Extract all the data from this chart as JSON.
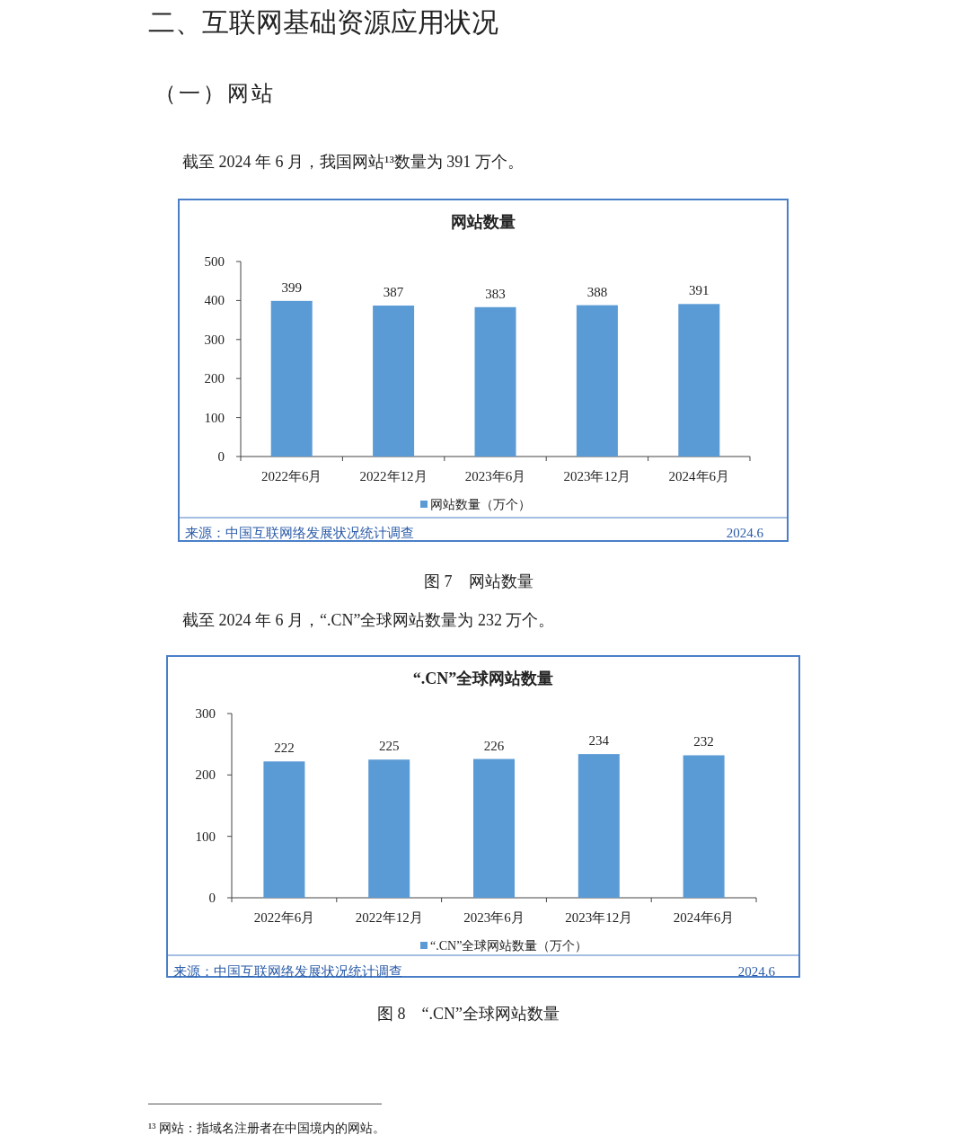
{
  "chart_data": [
    {
      "type": "bar",
      "title": "网站数量",
      "categories": [
        "2022年6月",
        "2022年12月",
        "2023年6月",
        "2023年12月",
        "2024年6月"
      ],
      "series": [
        {
          "name": "网站数量（万个）",
          "color": "#5b9bd5",
          "values": [
            399,
            387,
            383,
            388,
            391
          ]
        }
      ],
      "ylim": [
        0,
        500
      ],
      "yticks": [
        0,
        100,
        200,
        300,
        400,
        500
      ],
      "data_labels": true,
      "legend": "bottom",
      "grid": false,
      "annotations": [
        "二、互联网基础资源应用状况",
        "（一）网站",
        "截至 2024 年 6 月，我国网站¹³数量为 391 万个。",
        "来源：中国互联网络发展状况统计调查",
        "2024.6",
        "图 7　网站数量"
      ]
    },
    {
      "type": "bar",
      "title": "“.CN”全球网站数量",
      "categories": [
        "2022年6月",
        "2022年12月",
        "2023年6月",
        "2023年12月",
        "2024年6月"
      ],
      "series": [
        {
          "name": "“.CN”全球网站数量（万个）",
          "color": "#5b9bd5",
          "values": [
            222,
            225,
            226,
            234,
            232
          ]
        }
      ],
      "ylim": [
        0,
        300
      ],
      "yticks": [
        0,
        100,
        200,
        300
      ],
      "data_labels": true,
      "legend": "bottom",
      "grid": false,
      "annotations": [
        "截至 2024 年 6 月，“.CN”全球网站数量为 232 万个。",
        "来源：中国互联网络发展状况统计调查",
        "2024.6",
        "图 8　“.CN”全球网站数量",
        "¹³ 网站：指域名注册者在中国境内的网站。"
      ]
    }
  ]
}
